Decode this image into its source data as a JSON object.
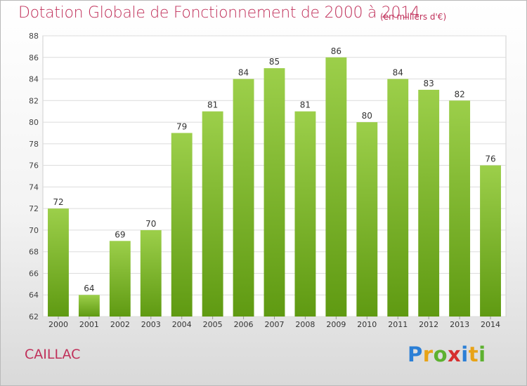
{
  "header": {
    "title": "Dotation Globale de Fonctionnement de 2000 à 2014",
    "unit": "(en milliers d'€)"
  },
  "footer": {
    "commune": "CAILLAC",
    "logo": "Proxiti"
  },
  "colors": {
    "title": "#c0305a",
    "bar_top": "#9ccf4a",
    "bar_bottom": "#5f9a12"
  },
  "chart_data": {
    "type": "bar",
    "title": "Dotation Globale de Fonctionnement de 2000 à 2014",
    "categories": [
      "2000",
      "2001",
      "2002",
      "2003",
      "2004",
      "2005",
      "2006",
      "2007",
      "2008",
      "2009",
      "2010",
      "2011",
      "2012",
      "2013",
      "2014"
    ],
    "values": [
      72,
      64,
      69,
      70,
      79,
      81,
      84,
      85,
      81,
      86,
      80,
      84,
      83,
      82,
      76
    ],
    "ylim": [
      62,
      88
    ],
    "yticks": [
      62,
      64,
      66,
      68,
      70,
      72,
      74,
      76,
      78,
      80,
      82,
      84,
      86,
      88
    ],
    "grid": true,
    "data_labels": true
  }
}
